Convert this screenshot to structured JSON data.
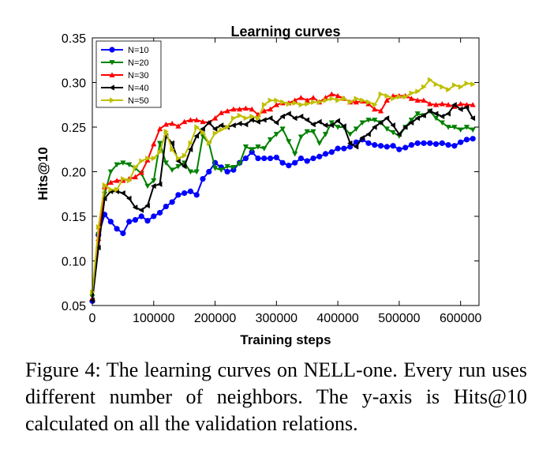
{
  "chart_data": {
    "type": "line",
    "title": "Learning curves",
    "xlabel": "Training steps",
    "ylabel": "Hits@10",
    "xlim": [
      0,
      630000
    ],
    "ylim": [
      0.05,
      0.35
    ],
    "x_ticks": [
      "0",
      "100000",
      "200000",
      "300000",
      "400000",
      "500000",
      "600000"
    ],
    "y_ticks": [
      "0.05",
      "0.10",
      "0.15",
      "0.20",
      "0.25",
      "0.30",
      "0.35"
    ],
    "grid": false,
    "legend": "top-left",
    "x": [
      0,
      10000,
      20000,
      30000,
      40000,
      50000,
      60000,
      70000,
      80000,
      90000,
      100000,
      110000,
      120000,
      130000,
      140000,
      150000,
      160000,
      170000,
      180000,
      190000,
      200000,
      210000,
      220000,
      230000,
      240000,
      250000,
      260000,
      270000,
      280000,
      290000,
      300000,
      310000,
      320000,
      330000,
      340000,
      350000,
      360000,
      370000,
      380000,
      390000,
      400000,
      410000,
      420000,
      430000,
      440000,
      450000,
      460000,
      470000,
      480000,
      490000,
      500000,
      510000,
      520000,
      530000,
      540000,
      550000,
      560000,
      570000,
      580000,
      590000,
      600000,
      610000,
      620000
    ],
    "series": [
      {
        "name": "N=10",
        "color": "#0000ff",
        "marker": "circle",
        "values": [
          0.055,
          0.129,
          0.152,
          0.144,
          0.136,
          0.131,
          0.144,
          0.146,
          0.15,
          0.145,
          0.15,
          0.154,
          0.161,
          0.166,
          0.174,
          0.176,
          0.178,
          0.174,
          0.192,
          0.2,
          0.21,
          0.205,
          0.2,
          0.202,
          0.21,
          0.215,
          0.222,
          0.215,
          0.215,
          0.215,
          0.216,
          0.21,
          0.207,
          0.21,
          0.215,
          0.212,
          0.215,
          0.217,
          0.22,
          0.222,
          0.226,
          0.226,
          0.228,
          0.233,
          0.236,
          0.232,
          0.23,
          0.229,
          0.228,
          0.229,
          0.225,
          0.227,
          0.23,
          0.232,
          0.232,
          0.232,
          0.231,
          0.232,
          0.23,
          0.229,
          0.233,
          0.236,
          0.237
        ]
      },
      {
        "name": "N=20",
        "color": "#008000",
        "marker": "triangle-down",
        "values": [
          0.06,
          0.13,
          0.175,
          0.2,
          0.208,
          0.21,
          0.208,
          0.204,
          0.198,
          0.184,
          0.19,
          0.232,
          0.21,
          0.202,
          0.206,
          0.21,
          0.2,
          0.2,
          0.24,
          0.232,
          0.204,
          0.202,
          0.206,
          0.205,
          0.209,
          0.228,
          0.225,
          0.228,
          0.226,
          0.236,
          0.242,
          0.248,
          0.234,
          0.22,
          0.239,
          0.245,
          0.245,
          0.232,
          0.242,
          0.255,
          0.25,
          0.25,
          0.242,
          0.248,
          0.255,
          0.258,
          0.258,
          0.255,
          0.248,
          0.244,
          0.24,
          0.25,
          0.258,
          0.265,
          0.263,
          0.268,
          0.26,
          0.255,
          0.25,
          0.25,
          0.247,
          0.25,
          0.247
        ]
      },
      {
        "name": "N=30",
        "color": "#ff0000",
        "marker": "triangle-up",
        "values": [
          0.058,
          0.125,
          0.183,
          0.188,
          0.19,
          0.19,
          0.192,
          0.194,
          0.199,
          0.213,
          0.231,
          0.248,
          0.253,
          0.254,
          0.251,
          0.256,
          0.258,
          0.258,
          0.256,
          0.255,
          0.26,
          0.266,
          0.268,
          0.27,
          0.27,
          0.271,
          0.27,
          0.264,
          0.268,
          0.27,
          0.275,
          0.277,
          0.277,
          0.28,
          0.283,
          0.28,
          0.283,
          0.278,
          0.283,
          0.287,
          0.285,
          0.282,
          0.278,
          0.278,
          0.279,
          0.276,
          0.27,
          0.268,
          0.28,
          0.285,
          0.285,
          0.285,
          0.282,
          0.28,
          0.28,
          0.276,
          0.275,
          0.276,
          0.275,
          0.273,
          0.276,
          0.275,
          0.275
        ]
      },
      {
        "name": "N=40",
        "color": "#000000",
        "marker": "triangle-left",
        "values": [
          0.056,
          0.115,
          0.17,
          0.178,
          0.178,
          0.176,
          0.17,
          0.16,
          0.157,
          0.162,
          0.184,
          0.186,
          0.24,
          0.232,
          0.212,
          0.206,
          0.225,
          0.24,
          0.248,
          0.255,
          0.248,
          0.252,
          0.25,
          0.252,
          0.254,
          0.253,
          0.258,
          0.256,
          0.258,
          0.26,
          0.255,
          0.262,
          0.265,
          0.26,
          0.262,
          0.258,
          0.253,
          0.256,
          0.252,
          0.252,
          0.257,
          0.251,
          0.232,
          0.228,
          0.238,
          0.242,
          0.25,
          0.255,
          0.26,
          0.252,
          0.242,
          0.25,
          0.255,
          0.26,
          0.263,
          0.268,
          0.265,
          0.262,
          0.265,
          0.275,
          0.27,
          0.272,
          0.26
        ]
      },
      {
        "name": "N=50",
        "color": "#bfbf00",
        "marker": "triangle-right",
        "values": [
          0.065,
          0.138,
          0.185,
          0.18,
          0.18,
          0.192,
          0.19,
          0.205,
          0.212,
          0.215,
          0.215,
          0.222,
          0.245,
          0.225,
          0.215,
          0.218,
          0.232,
          0.25,
          0.244,
          0.232,
          0.243,
          0.247,
          0.25,
          0.26,
          0.263,
          0.26,
          0.262,
          0.26,
          0.275,
          0.28,
          0.28,
          0.278,
          0.276,
          0.277,
          0.275,
          0.276,
          0.278,
          0.278,
          0.28,
          0.282,
          0.28,
          0.282,
          0.278,
          0.282,
          0.28,
          0.278,
          0.275,
          0.287,
          0.285,
          0.282,
          0.284,
          0.284,
          0.288,
          0.29,
          0.295,
          0.303,
          0.298,
          0.295,
          0.292,
          0.297,
          0.295,
          0.299,
          0.298
        ]
      }
    ]
  },
  "caption": "Figure 4: The learning curves on NELL-one. Every run uses different number of neighbors. The y-axis is Hits@10 calculated on all the validation relations."
}
